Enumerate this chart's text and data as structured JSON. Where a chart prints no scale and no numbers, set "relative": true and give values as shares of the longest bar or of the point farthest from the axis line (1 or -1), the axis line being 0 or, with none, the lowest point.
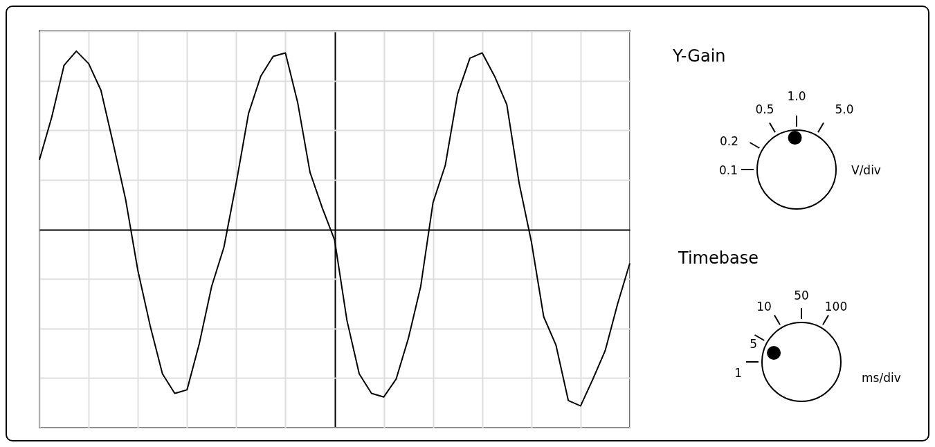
{
  "chart_data": {
    "type": "line",
    "relative": true,
    "grid": true,
    "color": "#000000",
    "categories": [
      null,
      null,
      null,
      null,
      null,
      null,
      null,
      null,
      null,
      null,
      null,
      null,
      null,
      null,
      null,
      null,
      null,
      null,
      null,
      null,
      null,
      null,
      null,
      null,
      null,
      null,
      null,
      null,
      null,
      null,
      null,
      null,
      null,
      null,
      null,
      null,
      null,
      null,
      null,
      null,
      null,
      null,
      null,
      null,
      null,
      null,
      null,
      null,
      null
    ],
    "values": [
      0.39,
      0.63,
      0.92,
      1.0,
      0.93,
      0.78,
      0.48,
      0.17,
      -0.23,
      -0.54,
      -0.81,
      -0.92,
      -0.9,
      -0.64,
      -0.32,
      -0.1,
      0.26,
      0.65,
      0.86,
      0.97,
      0.99,
      0.71,
      0.32,
      0.12,
      -0.06,
      -0.51,
      -0.81,
      -0.92,
      -0.94,
      -0.84,
      -0.61,
      -0.32,
      0.15,
      0.36,
      0.76,
      0.96,
      0.99,
      0.86,
      0.7,
      0.26,
      -0.07,
      -0.49,
      -0.65,
      -0.96,
      -0.99,
      -0.84,
      -0.68,
      -0.42,
      -0.19
    ],
    "annotations": [
      "Y-Gain",
      "0.1",
      "0.2",
      "0.5",
      "1.0",
      "5.0",
      "V/div",
      "Timebase",
      "1",
      "5",
      "10",
      "50",
      "100",
      "ms/div"
    ]
  }
}
